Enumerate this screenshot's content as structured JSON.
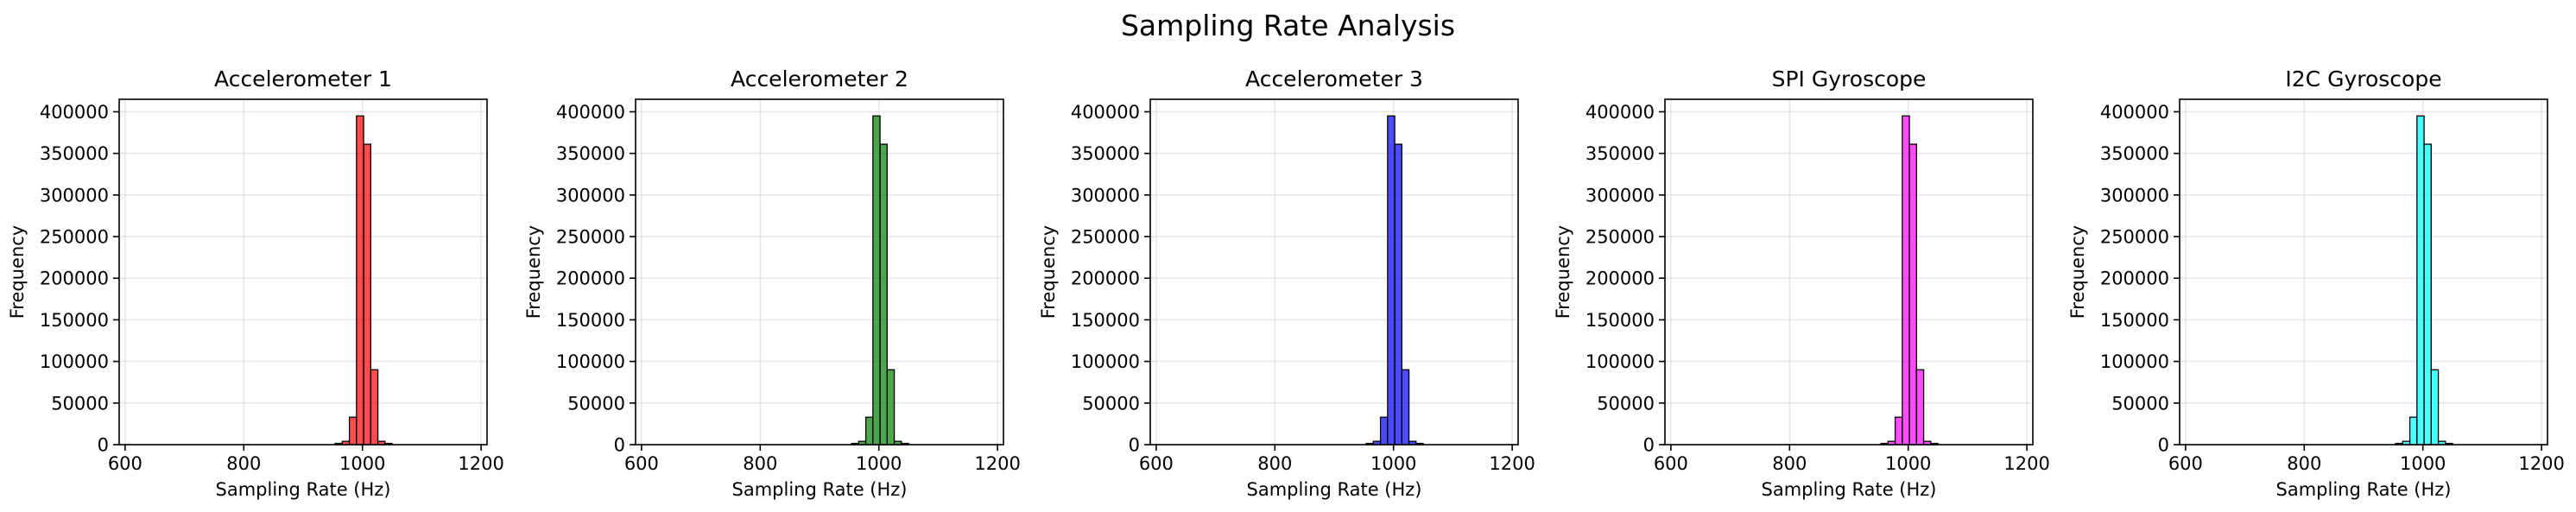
{
  "suptitle": "Sampling Rate Analysis",
  "chart_data": [
    {
      "type": "bar",
      "title": "Accelerometer 1",
      "xlabel": "Sampling Rate (Hz)",
      "ylabel": "Frequency",
      "color": "#ff0000",
      "xlim": [
        590,
        1210
      ],
      "ylim": [
        0,
        415000
      ],
      "xticks": [
        600,
        800,
        1000,
        1200
      ],
      "yticks": [
        0,
        50000,
        100000,
        150000,
        200000,
        250000,
        300000,
        350000,
        400000
      ],
      "grid": true,
      "bin_width": 12,
      "bins": [
        {
          "x": 954,
          "value": 1500
        },
        {
          "x": 966,
          "value": 4000
        },
        {
          "x": 978,
          "value": 33000
        },
        {
          "x": 990,
          "value": 395000
        },
        {
          "x": 1002,
          "value": 361000
        },
        {
          "x": 1014,
          "value": 90000
        },
        {
          "x": 1026,
          "value": 4000
        },
        {
          "x": 1038,
          "value": 1500
        }
      ]
    },
    {
      "type": "bar",
      "title": "Accelerometer 2",
      "xlabel": "Sampling Rate (Hz)",
      "ylabel": "Frequency",
      "color": "#008000",
      "xlim": [
        590,
        1210
      ],
      "ylim": [
        0,
        415000
      ],
      "xticks": [
        600,
        800,
        1000,
        1200
      ],
      "yticks": [
        0,
        50000,
        100000,
        150000,
        200000,
        250000,
        300000,
        350000,
        400000
      ],
      "grid": true,
      "bin_width": 12,
      "bins": [
        {
          "x": 954,
          "value": 1500
        },
        {
          "x": 966,
          "value": 4000
        },
        {
          "x": 978,
          "value": 33000
        },
        {
          "x": 990,
          "value": 395000
        },
        {
          "x": 1002,
          "value": 361000
        },
        {
          "x": 1014,
          "value": 90000
        },
        {
          "x": 1026,
          "value": 4000
        },
        {
          "x": 1038,
          "value": 1500
        }
      ]
    },
    {
      "type": "bar",
      "title": "Accelerometer 3",
      "xlabel": "Sampling Rate (Hz)",
      "ylabel": "Frequency",
      "color": "#0000ff",
      "xlim": [
        590,
        1210
      ],
      "ylim": [
        0,
        415000
      ],
      "xticks": [
        600,
        800,
        1000,
        1200
      ],
      "yticks": [
        0,
        50000,
        100000,
        150000,
        200000,
        250000,
        300000,
        350000,
        400000
      ],
      "grid": true,
      "bin_width": 12,
      "bins": [
        {
          "x": 954,
          "value": 1500
        },
        {
          "x": 966,
          "value": 4000
        },
        {
          "x": 978,
          "value": 33000
        },
        {
          "x": 990,
          "value": 395000
        },
        {
          "x": 1002,
          "value": 361000
        },
        {
          "x": 1014,
          "value": 90000
        },
        {
          "x": 1026,
          "value": 4000
        },
        {
          "x": 1038,
          "value": 1500
        }
      ]
    },
    {
      "type": "bar",
      "title": "SPI Gyroscope",
      "xlabel": "Sampling Rate (Hz)",
      "ylabel": "Frequency",
      "color": "#ff00ff",
      "xlim": [
        590,
        1210
      ],
      "ylim": [
        0,
        415000
      ],
      "xticks": [
        600,
        800,
        1000,
        1200
      ],
      "yticks": [
        0,
        50000,
        100000,
        150000,
        200000,
        250000,
        300000,
        350000,
        400000
      ],
      "grid": true,
      "bin_width": 12,
      "bins": [
        {
          "x": 954,
          "value": 1500
        },
        {
          "x": 966,
          "value": 4000
        },
        {
          "x": 978,
          "value": 33000
        },
        {
          "x": 990,
          "value": 395000
        },
        {
          "x": 1002,
          "value": 361000
        },
        {
          "x": 1014,
          "value": 90000
        },
        {
          "x": 1026,
          "value": 4000
        },
        {
          "x": 1038,
          "value": 1500
        }
      ]
    },
    {
      "type": "bar",
      "title": "I2C Gyroscope",
      "xlabel": "Sampling Rate (Hz)",
      "ylabel": "Frequency",
      "color": "#00ffff",
      "xlim": [
        590,
        1210
      ],
      "ylim": [
        0,
        415000
      ],
      "xticks": [
        600,
        800,
        1000,
        1200
      ],
      "yticks": [
        0,
        50000,
        100000,
        150000,
        200000,
        250000,
        300000,
        350000,
        400000
      ],
      "grid": true,
      "bin_width": 12,
      "bins": [
        {
          "x": 954,
          "value": 1500
        },
        {
          "x": 966,
          "value": 4000
        },
        {
          "x": 978,
          "value": 33000
        },
        {
          "x": 990,
          "value": 395000
        },
        {
          "x": 1002,
          "value": 361000
        },
        {
          "x": 1014,
          "value": 90000
        },
        {
          "x": 1026,
          "value": 4000
        },
        {
          "x": 1038,
          "value": 1500
        }
      ]
    }
  ]
}
